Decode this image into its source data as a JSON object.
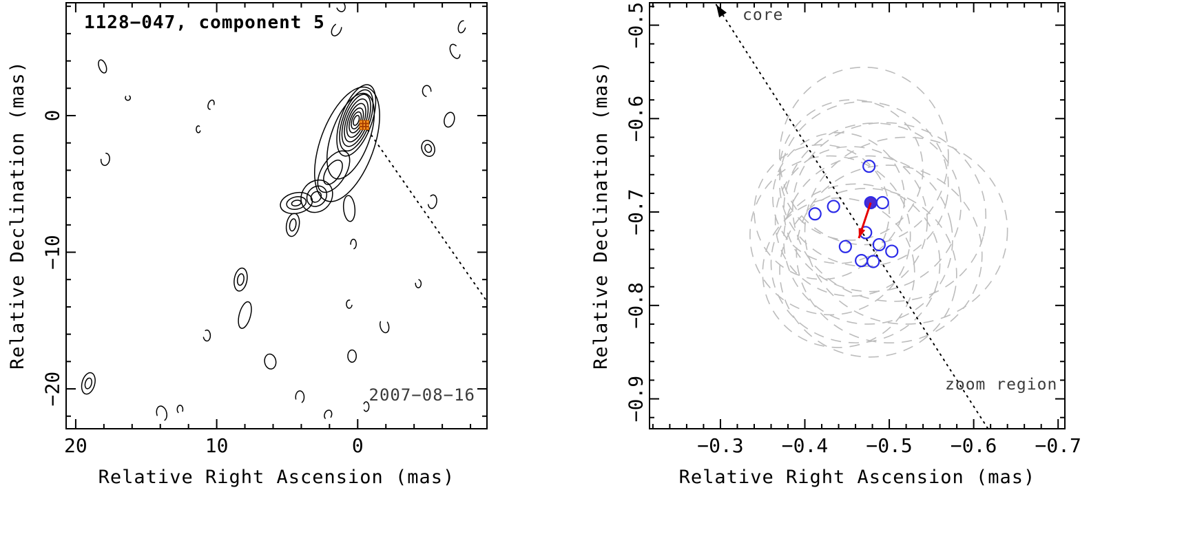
{
  "figure": {
    "description": "VLBI jet component kinematics figure with two panels"
  },
  "chart_data": [
    {
      "id": "contour-map",
      "type": "contour",
      "title": "1128−047, component 5",
      "date_label": "2007−08−16",
      "xlabel": "Relative Right Ascension (mas)",
      "ylabel": "Relative Declination (mas)",
      "xlim": [
        20.68,
        -9.17
      ],
      "ylim": [
        8.26,
        -22.92
      ],
      "xticks": [
        20,
        10,
        0
      ],
      "xtick_labels": [
        "20",
        "10",
        "0"
      ],
      "yticks": [
        0,
        -10,
        -20
      ],
      "ytick_labels": [
        "0",
        "−10",
        "−20"
      ],
      "minor_step_x": 2,
      "minor_step_y": 2,
      "grid": false,
      "marker": {
        "type": "square-crosshatch",
        "x": -0.47,
        "y": -0.69,
        "color": "#ffa028",
        "edge": "#cc6600",
        "hatch": "#a63c00"
      },
      "dotted_line": {
        "x1": -0.47,
        "y1": -0.69,
        "x2": -9.17,
        "y2": -13.6
      },
      "core": {
        "cx": 0.1,
        "cy": -0.35,
        "angle": 20,
        "levels": [
          [
            0.18,
            0.38
          ],
          [
            0.3,
            0.65
          ],
          [
            0.42,
            0.95
          ],
          [
            0.55,
            1.3
          ],
          [
            0.68,
            1.65
          ],
          [
            0.82,
            2.0
          ],
          [
            0.95,
            2.35
          ],
          [
            1.1,
            2.75
          ]
        ]
      },
      "jet_contours": [
        {
          "cx": 0.75,
          "cy": -2.1,
          "rx": 1.9,
          "ry": 4.4,
          "angle": 20
        },
        {
          "cx": 0.5,
          "cy": -1.5,
          "rx": 1.35,
          "ry": 3.3,
          "angle": 20
        },
        {
          "cx": 1.7,
          "cy": -4.1,
          "rx": 0.85,
          "ry": 1.7,
          "angle": 32
        },
        {
          "cx": 1.75,
          "cy": -4.15,
          "rx": 0.5,
          "ry": 1.0,
          "angle": 32
        },
        {
          "cx": 2.9,
          "cy": -5.9,
          "rx": 1.05,
          "ry": 1.25,
          "angle": 40
        },
        {
          "cx": 2.9,
          "cy": -5.9,
          "rx": 0.65,
          "ry": 0.8,
          "angle": 40
        },
        {
          "cx": 2.95,
          "cy": -5.95,
          "rx": 0.33,
          "ry": 0.42,
          "angle": 40
        },
        {
          "cx": 4.35,
          "cy": -6.4,
          "rx": 1.15,
          "ry": 0.75,
          "angle": -12
        },
        {
          "cx": 4.35,
          "cy": -6.4,
          "rx": 0.7,
          "ry": 0.45,
          "angle": -12
        },
        {
          "cx": 4.35,
          "cy": -6.4,
          "rx": 0.34,
          "ry": 0.2,
          "angle": -12
        },
        {
          "cx": 4.6,
          "cy": -8.0,
          "rx": 0.45,
          "ry": 0.85,
          "angle": 10
        },
        {
          "cx": 4.6,
          "cy": -8.0,
          "rx": 0.22,
          "ry": 0.45,
          "angle": 10
        },
        {
          "cx": 0.6,
          "cy": -6.8,
          "rx": 0.4,
          "ry": 0.95,
          "angle": -5
        }
      ],
      "noise_contours": [
        {
          "x": 18.1,
          "y": 3.6,
          "rx": 0.25,
          "ry": 0.5,
          "rot": -20,
          "open": false,
          "nested": false
        },
        {
          "x": 16.3,
          "y": 1.3,
          "rx": 0.18,
          "ry": 0.18,
          "rot": 0,
          "open": true,
          "nested": false
        },
        {
          "x": 17.9,
          "y": -3.2,
          "rx": 0.3,
          "ry": 0.45,
          "rot": 10,
          "open": true,
          "nested": false
        },
        {
          "x": 19.1,
          "y": -19.6,
          "rx": 0.45,
          "ry": 0.8,
          "rot": 15,
          "open": false,
          "nested": true
        },
        {
          "x": 13.9,
          "y": -21.8,
          "rx": 0.35,
          "ry": 0.55,
          "rot": -15,
          "open": true,
          "nested": false
        },
        {
          "x": 12.6,
          "y": -21.5,
          "rx": 0.2,
          "ry": 0.3,
          "rot": 0,
          "open": true,
          "nested": false
        },
        {
          "x": 10.4,
          "y": 0.8,
          "rx": 0.2,
          "ry": 0.35,
          "rot": 20,
          "open": true,
          "nested": false
        },
        {
          "x": 11.3,
          "y": -1.0,
          "rx": 0.15,
          "ry": 0.25,
          "rot": 0,
          "open": true,
          "nested": false
        },
        {
          "x": 8.3,
          "y": -12.0,
          "rx": 0.45,
          "ry": 0.85,
          "rot": 10,
          "open": false,
          "nested": true
        },
        {
          "x": 8.0,
          "y": -14.6,
          "rx": 0.4,
          "ry": 1.0,
          "rot": 15,
          "open": false,
          "nested": false
        },
        {
          "x": 10.7,
          "y": -16.1,
          "rx": 0.25,
          "ry": 0.4,
          "rot": 0,
          "open": true,
          "nested": false
        },
        {
          "x": 6.2,
          "y": -18.0,
          "rx": 0.4,
          "ry": 0.55,
          "rot": -10,
          "open": false,
          "nested": false
        },
        {
          "x": 4.1,
          "y": -20.6,
          "rx": 0.3,
          "ry": 0.45,
          "rot": 0,
          "open": true,
          "nested": false
        },
        {
          "x": 2.1,
          "y": -21.9,
          "rx": 0.25,
          "ry": 0.35,
          "rot": 20,
          "open": true,
          "nested": false
        },
        {
          "x": 0.4,
          "y": -17.6,
          "rx": 0.3,
          "ry": 0.45,
          "rot": 0,
          "open": false,
          "nested": false
        },
        {
          "x": 0.6,
          "y": -13.8,
          "rx": 0.2,
          "ry": 0.3,
          "rot": 0,
          "open": true,
          "nested": false
        },
        {
          "x": -1.9,
          "y": -15.4,
          "rx": 0.3,
          "ry": 0.5,
          "rot": -15,
          "open": true,
          "nested": false
        },
        {
          "x": -4.3,
          "y": -12.3,
          "rx": 0.2,
          "ry": 0.3,
          "rot": 0,
          "open": true,
          "nested": false
        },
        {
          "x": -5.3,
          "y": -6.3,
          "rx": 0.3,
          "ry": 0.5,
          "rot": 10,
          "open": true,
          "nested": false
        },
        {
          "x": -5.0,
          "y": -2.4,
          "rx": 0.45,
          "ry": 0.6,
          "rot": -20,
          "open": false,
          "nested": true
        },
        {
          "x": -6.5,
          "y": -0.3,
          "rx": 0.35,
          "ry": 0.55,
          "rot": 15,
          "open": false,
          "nested": false
        },
        {
          "x": -4.9,
          "y": 1.8,
          "rx": 0.3,
          "ry": 0.4,
          "rot": 0,
          "open": true,
          "nested": false
        },
        {
          "x": -6.9,
          "y": 4.7,
          "rx": 0.3,
          "ry": 0.55,
          "rot": -25,
          "open": true,
          "nested": false
        },
        {
          "x": -7.4,
          "y": 6.5,
          "rx": 0.25,
          "ry": 0.45,
          "rot": 15,
          "open": true,
          "nested": false
        },
        {
          "x": 1.5,
          "y": 6.3,
          "rx": 0.3,
          "ry": 0.5,
          "rot": 30,
          "open": true,
          "nested": false
        },
        {
          "x": 1.2,
          "y": 8.0,
          "rx": 0.3,
          "ry": 0.4,
          "rot": -20,
          "open": true,
          "nested": false
        },
        {
          "x": -0.6,
          "y": -21.3,
          "rx": 0.2,
          "ry": 0.35,
          "rot": 0,
          "open": true,
          "nested": false
        },
        {
          "x": 0.3,
          "y": -9.4,
          "rx": 0.2,
          "ry": 0.35,
          "rot": 0,
          "open": true,
          "nested": false
        }
      ]
    },
    {
      "id": "zoom-plot",
      "type": "scatter",
      "xlabel": "Relative Right Ascension (mas)",
      "ylabel": "Relative Declination (mas)",
      "xlim": [
        -0.216,
        -0.708
      ],
      "ylim": [
        -0.476,
        -0.932
      ],
      "xticks": [
        -0.3,
        -0.4,
        -0.5,
        -0.6,
        -0.7
      ],
      "xtick_labels": [
        "−0.3",
        "−0.4",
        "−0.5",
        "−0.6",
        "−0.7"
      ],
      "yticks": [
        -0.5,
        -0.6,
        -0.7,
        -0.8,
        -0.9
      ],
      "ytick_labels": [
        "−0.5",
        "−0.6",
        "−0.7",
        "−0.8",
        "−0.9"
      ],
      "minor_step_x": 0.02,
      "minor_step_y": 0.02,
      "grid": false,
      "annotations": {
        "core": "core",
        "zoom_region": "zoom region"
      },
      "trajectory_line": {
        "x1": -0.295,
        "y1": -0.478,
        "x2": -0.617,
        "y2": -0.932
      },
      "colors": {
        "points": "#2b2be8",
        "ellipses": "#bcbcbc",
        "arrow": "#e60000",
        "mean_point": "#4b2bd0"
      },
      "beam_ellipses": [
        {
          "cx": -0.47,
          "cy": -0.64,
          "rx": 0.1,
          "ry": 0.095,
          "angle": 0
        },
        {
          "cx": -0.455,
          "cy": -0.655,
          "rx": 0.085,
          "ry": 0.075,
          "angle": -15
        },
        {
          "cx": -0.47,
          "cy": -0.67,
          "rx": 0.1,
          "ry": 0.088,
          "angle": 10
        },
        {
          "cx": -0.44,
          "cy": -0.685,
          "rx": 0.078,
          "ry": 0.07,
          "angle": 0
        },
        {
          "cx": -0.48,
          "cy": -0.695,
          "rx": 0.105,
          "ry": 0.09,
          "angle": -10
        },
        {
          "cx": -0.5,
          "cy": -0.7,
          "rx": 0.115,
          "ry": 0.095,
          "angle": 15
        },
        {
          "cx": -0.455,
          "cy": -0.71,
          "rx": 0.09,
          "ry": 0.08,
          "angle": 0
        },
        {
          "cx": -0.43,
          "cy": -0.725,
          "rx": 0.095,
          "ry": 0.085,
          "angle": 10
        },
        {
          "cx": -0.475,
          "cy": -0.73,
          "rx": 0.1,
          "ry": 0.09,
          "angle": -12
        },
        {
          "cx": -0.5,
          "cy": -0.745,
          "rx": 0.11,
          "ry": 0.095,
          "angle": 8
        },
        {
          "cx": -0.46,
          "cy": -0.755,
          "rx": 0.1,
          "ry": 0.085,
          "angle": 0
        },
        {
          "cx": -0.44,
          "cy": -0.765,
          "rx": 0.09,
          "ry": 0.08,
          "angle": -8
        },
        {
          "cx": -0.475,
          "cy": -0.765,
          "rx": 0.105,
          "ry": 0.09,
          "angle": 12
        },
        {
          "cx": -0.52,
          "cy": -0.72,
          "rx": 0.12,
          "ry": 0.1,
          "angle": 0
        },
        {
          "cx": -0.42,
          "cy": -0.7,
          "rx": 0.08,
          "ry": 0.072,
          "angle": 18
        }
      ],
      "epoch_points": [
        {
          "x": -0.476,
          "y": -0.651
        },
        {
          "x": -0.492,
          "y": -0.69
        },
        {
          "x": -0.434,
          "y": -0.694
        },
        {
          "x": -0.412,
          "y": -0.702
        },
        {
          "x": -0.472,
          "y": -0.722
        },
        {
          "x": -0.488,
          "y": -0.735
        },
        {
          "x": -0.503,
          "y": -0.742
        },
        {
          "x": -0.467,
          "y": -0.752
        },
        {
          "x": -0.481,
          "y": -0.753
        },
        {
          "x": -0.448,
          "y": -0.737
        }
      ],
      "mean_point": {
        "x": -0.478,
        "y": -0.69
      },
      "velocity_arrow": {
        "x1": -0.478,
        "y1": -0.69,
        "x2": -0.464,
        "y2": -0.728
      }
    }
  ]
}
